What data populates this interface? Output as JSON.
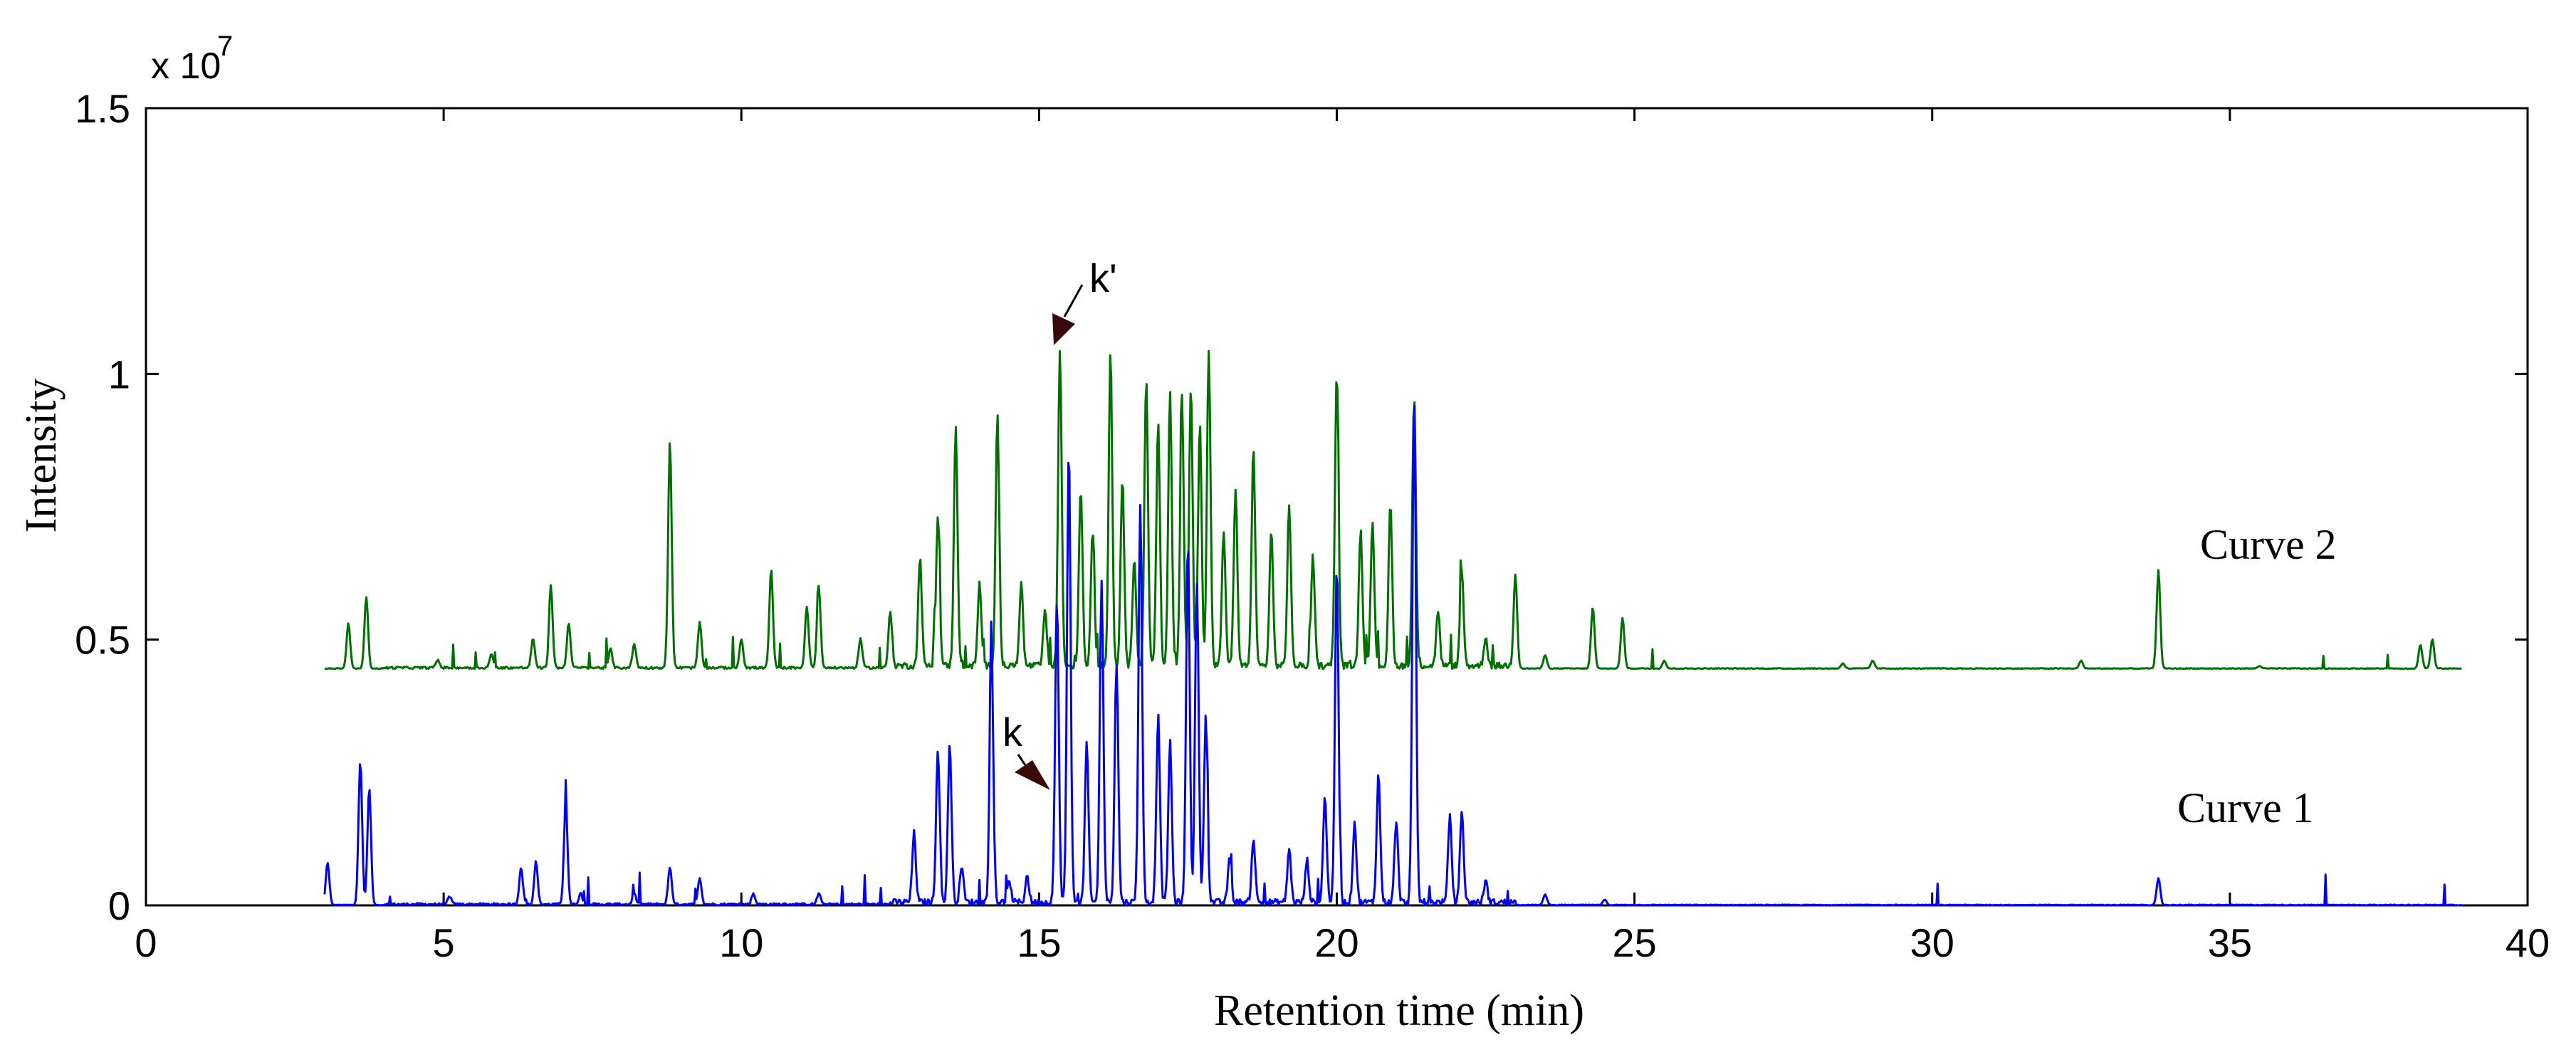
{
  "chart_data": {
    "type": "line",
    "xlabel": "Retention time (min)",
    "ylabel": "Intensity",
    "y_exponent_label": "x 10",
    "y_exponent_power": "7",
    "xlim": [
      0,
      40
    ],
    "ylim": [
      0,
      1.5
    ],
    "x_ticks": [
      0,
      5,
      10,
      15,
      20,
      25,
      30,
      35,
      40
    ],
    "y_ticks": [
      0,
      0.5,
      1,
      1.5
    ],
    "x_tick_labels": [
      "0",
      "5",
      "10",
      "15",
      "20",
      "25",
      "30",
      "35",
      "40"
    ],
    "y_tick_labels": [
      "0",
      "0.5",
      "1",
      "1.5"
    ],
    "series": [
      {
        "name": "Curve 1",
        "color": "#0000ff",
        "baseline": 0.0,
        "x_range": [
          3.0,
          38.9
        ],
        "peaks": [
          [
            3.05,
            0.08
          ],
          [
            3.6,
            0.27
          ],
          [
            3.75,
            0.22
          ],
          [
            5.1,
            0.015
          ],
          [
            6.3,
            0.07
          ],
          [
            6.55,
            0.08
          ],
          [
            7.05,
            0.19
          ],
          [
            7.3,
            0.02
          ],
          [
            8.2,
            0.02
          ],
          [
            8.8,
            0.07
          ],
          [
            9.3,
            0.05
          ],
          [
            10.2,
            0.02
          ],
          [
            11.3,
            0.02
          ],
          [
            12.9,
            0.13
          ],
          [
            13.3,
            0.29
          ],
          [
            13.5,
            0.3
          ],
          [
            13.7,
            0.07
          ],
          [
            14.2,
            0.48
          ],
          [
            14.5,
            0.04
          ],
          [
            14.8,
            0.05
          ],
          [
            15.3,
            0.57
          ],
          [
            15.5,
            0.86
          ],
          [
            15.8,
            0.3
          ],
          [
            16.05,
            0.6
          ],
          [
            16.3,
            0.45
          ],
          [
            16.7,
            0.75
          ],
          [
            17.0,
            0.35
          ],
          [
            17.2,
            0.3
          ],
          [
            17.5,
            0.68
          ],
          [
            17.65,
            0.6
          ],
          [
            17.8,
            0.35
          ],
          [
            18.2,
            0.08
          ],
          [
            18.6,
            0.12
          ],
          [
            19.2,
            0.1
          ],
          [
            19.5,
            0.08
          ],
          [
            19.8,
            0.2
          ],
          [
            20.0,
            0.63
          ],
          [
            20.3,
            0.15
          ],
          [
            20.7,
            0.24
          ],
          [
            21.0,
            0.15
          ],
          [
            21.3,
            0.95
          ],
          [
            21.9,
            0.16
          ],
          [
            22.1,
            0.17
          ],
          [
            22.5,
            0.04
          ],
          [
            23.5,
            0.02
          ],
          [
            24.5,
            0.01
          ],
          [
            33.8,
            0.05
          ]
        ]
      },
      {
        "name": "Curve 2",
        "color": "#007000",
        "baseline": 0.445,
        "x_range": [
          3.0,
          38.9
        ],
        "peaks": [
          [
            3.4,
            0.53
          ],
          [
            3.7,
            0.58
          ],
          [
            4.9,
            0.46
          ],
          [
            5.8,
            0.47
          ],
          [
            6.5,
            0.5
          ],
          [
            6.8,
            0.6
          ],
          [
            7.1,
            0.53
          ],
          [
            7.8,
            0.48
          ],
          [
            8.2,
            0.49
          ],
          [
            8.8,
            0.87
          ],
          [
            9.3,
            0.53
          ],
          [
            10.0,
            0.5
          ],
          [
            10.5,
            0.63
          ],
          [
            11.1,
            0.56
          ],
          [
            11.3,
            0.6
          ],
          [
            12.0,
            0.5
          ],
          [
            12.5,
            0.55
          ],
          [
            13.0,
            0.65
          ],
          [
            13.3,
            0.73
          ],
          [
            13.6,
            0.9
          ],
          [
            14.0,
            0.6
          ],
          [
            14.3,
            0.92
          ],
          [
            14.7,
            0.6
          ],
          [
            15.1,
            0.55
          ],
          [
            15.35,
            1.04
          ],
          [
            15.7,
            0.78
          ],
          [
            15.9,
            0.7
          ],
          [
            16.2,
            1.04
          ],
          [
            16.4,
            0.8
          ],
          [
            16.6,
            0.65
          ],
          [
            16.8,
            0.98
          ],
          [
            17.0,
            0.9
          ],
          [
            17.2,
            0.96
          ],
          [
            17.4,
            0.95
          ],
          [
            17.55,
            0.97
          ],
          [
            17.7,
            0.9
          ],
          [
            17.85,
            1.04
          ],
          [
            18.1,
            0.7
          ],
          [
            18.3,
            0.78
          ],
          [
            18.6,
            0.85
          ],
          [
            18.9,
            0.7
          ],
          [
            19.2,
            0.75
          ],
          [
            19.6,
            0.65
          ],
          [
            20.0,
            1.0
          ],
          [
            20.4,
            0.7
          ],
          [
            20.6,
            0.72
          ],
          [
            20.9,
            0.75
          ],
          [
            21.3,
            0.95
          ],
          [
            21.7,
            0.55
          ],
          [
            22.1,
            0.62
          ],
          [
            22.5,
            0.5
          ],
          [
            23.0,
            0.62
          ],
          [
            23.5,
            0.47
          ],
          [
            24.3,
            0.56
          ],
          [
            24.8,
            0.54
          ],
          [
            25.5,
            0.46
          ],
          [
            28.5,
            0.455
          ],
          [
            29.0,
            0.46
          ],
          [
            32.5,
            0.46
          ],
          [
            33.8,
            0.63
          ],
          [
            35.5,
            0.45
          ],
          [
            38.2,
            0.49
          ],
          [
            38.4,
            0.5
          ]
        ]
      }
    ],
    "annotations": [
      {
        "text": "k'",
        "target": [
          15.3,
          1.05
        ]
      },
      {
        "text": "k",
        "target": [
          15.2,
          0.22
        ]
      },
      {
        "text": "Curve 2"
      },
      {
        "text": "Curve 1"
      }
    ]
  }
}
